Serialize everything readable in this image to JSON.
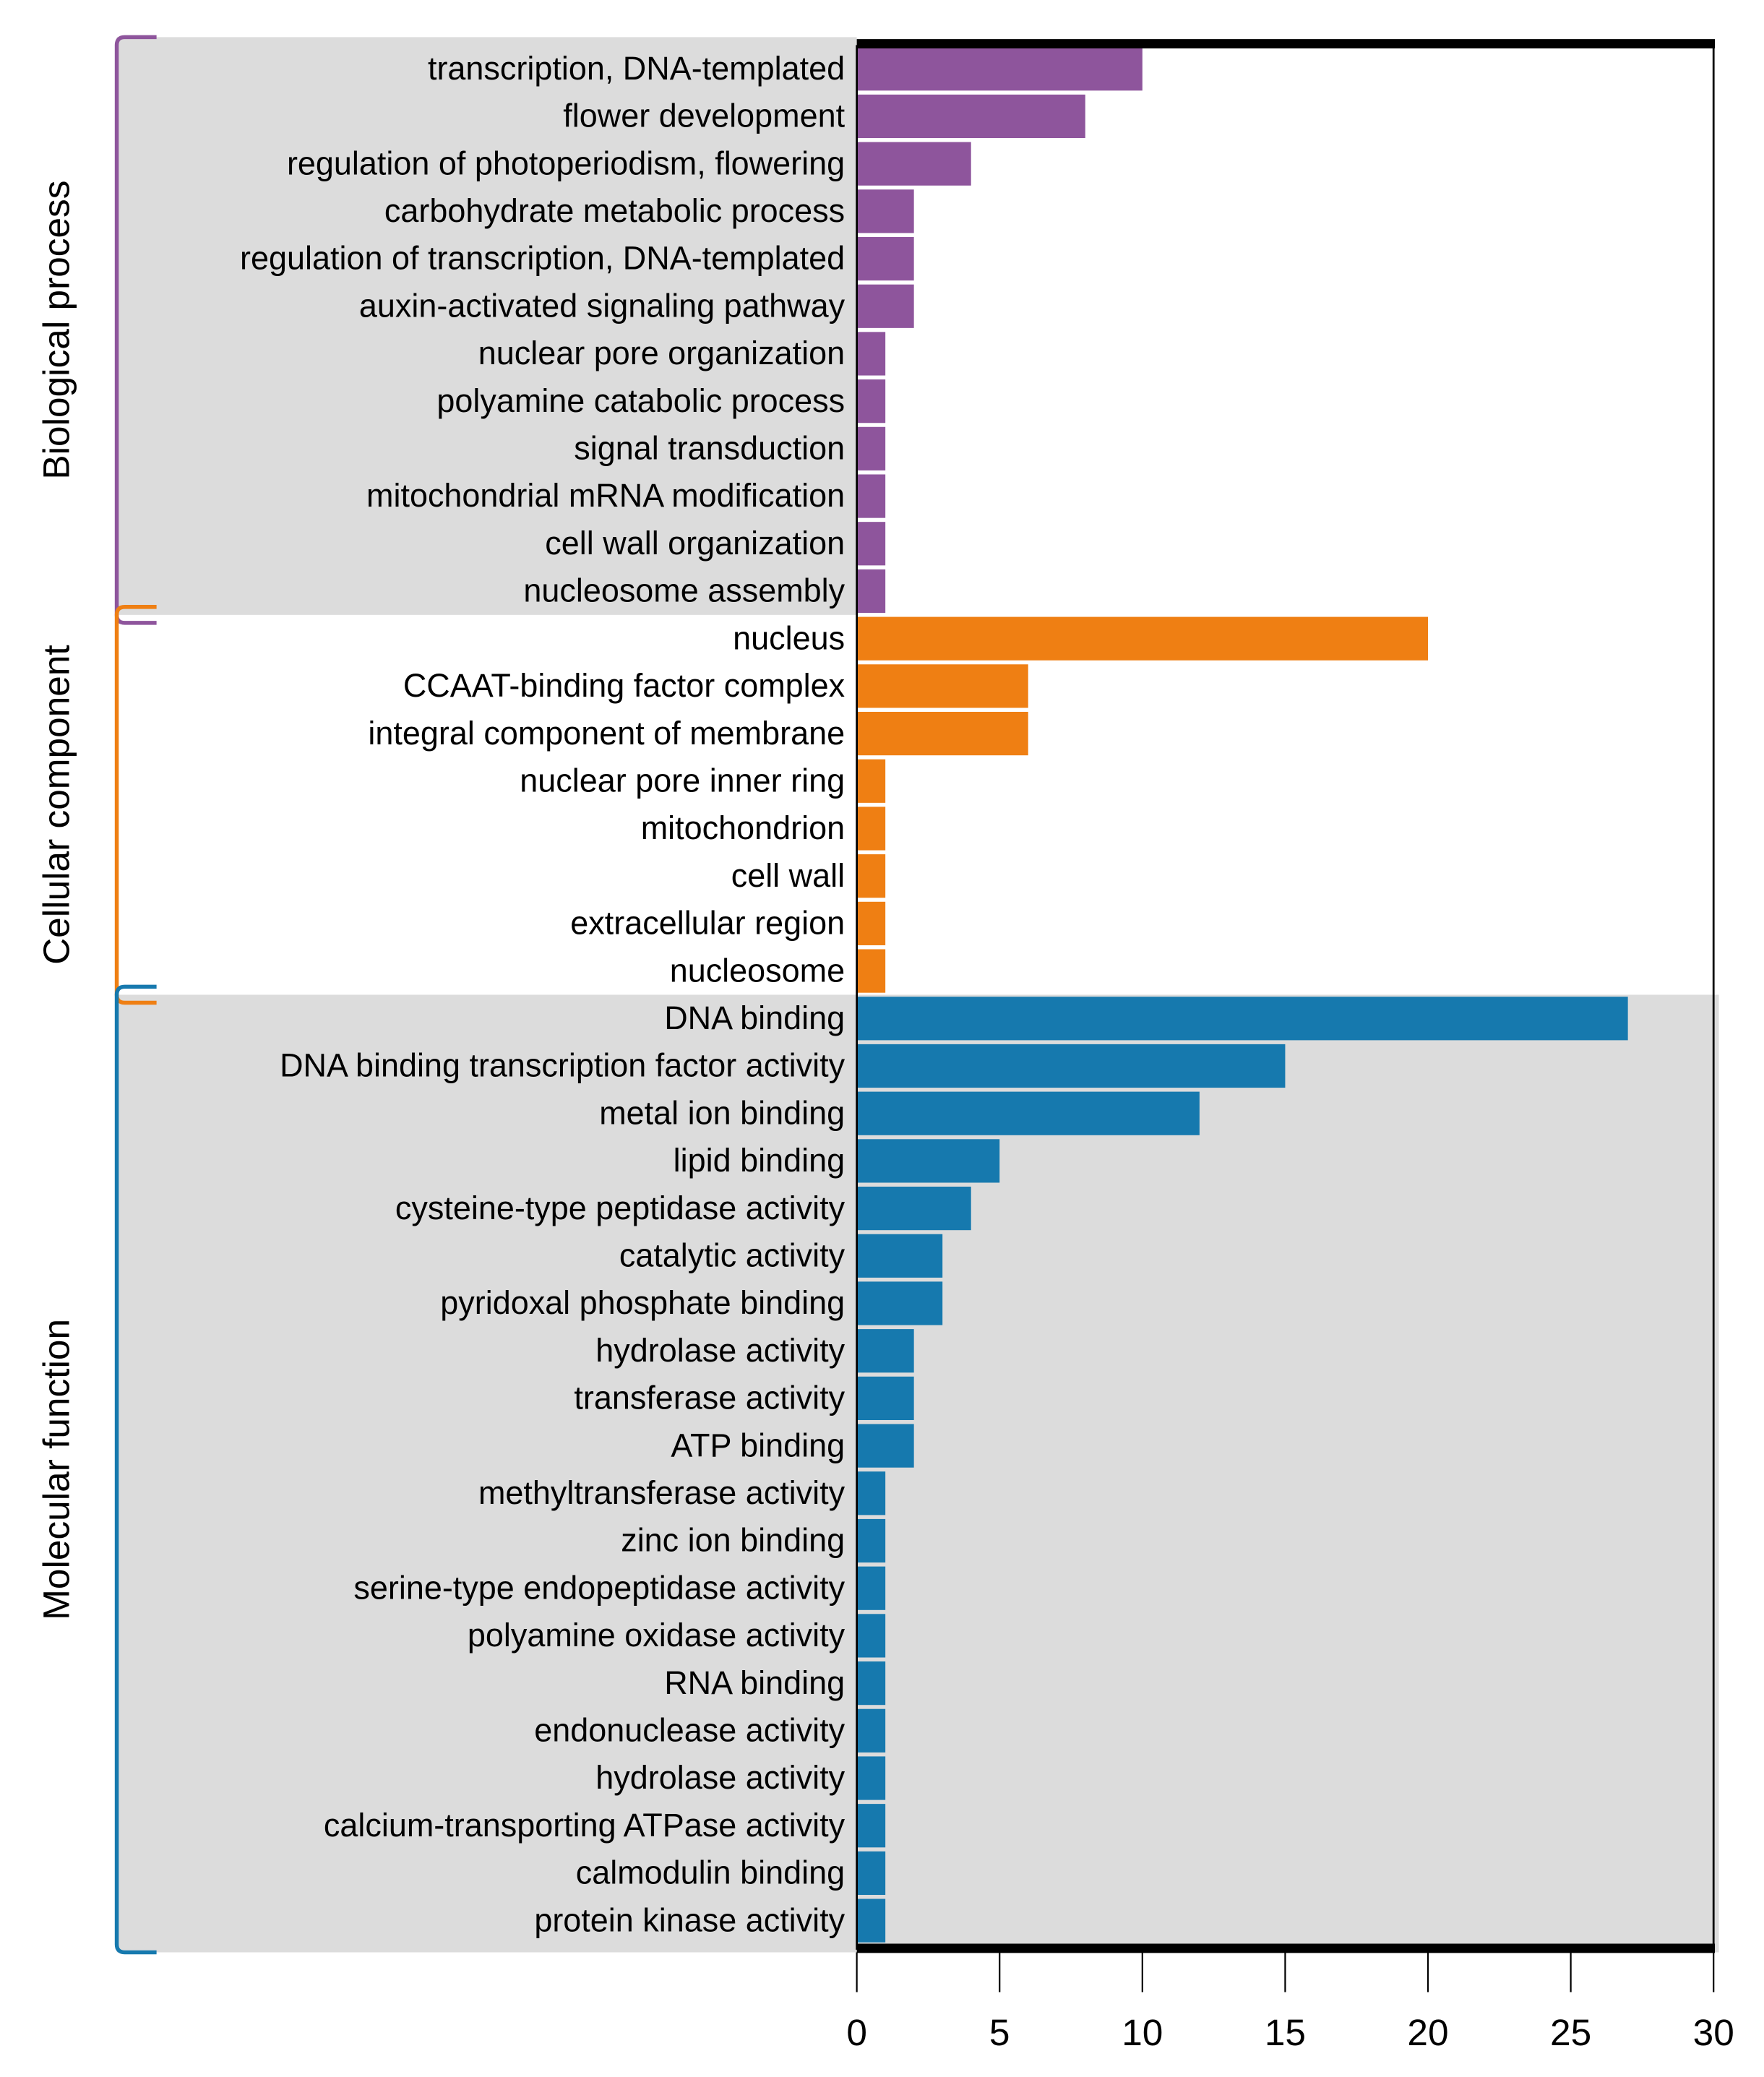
{
  "chart_data": {
    "type": "bar",
    "orientation": "horizontal",
    "xlim": [
      0,
      30
    ],
    "xticks": [
      0,
      5,
      10,
      15,
      20,
      25,
      30
    ],
    "xlabel": "",
    "ylabel": "",
    "title": "",
    "groups": [
      {
        "name": "Biological process",
        "color": "#8e559c",
        "categories": [
          "transcription, DNA-templated",
          "flower development",
          "regulation of photoperiodism, flowering",
          "carbohydrate metabolic process",
          "regulation of transcription, DNA-templated",
          "auxin-activated signaling pathway",
          "nuclear pore organization",
          "polyamine catabolic process",
          "signal transduction",
          "mitochondrial mRNA modification",
          "cell wall organization",
          "nucleosome assembly"
        ],
        "values": [
          10,
          8,
          4,
          2,
          2,
          2,
          1,
          1,
          1,
          1,
          1,
          1
        ]
      },
      {
        "name": "Cellular component",
        "color": "#ef7f13",
        "categories": [
          "nucleus",
          "CCAAT-binding factor complex",
          "integral component of membrane",
          "nuclear pore inner ring",
          "mitochondrion",
          "cell wall",
          "extracellular region",
          "nucleosome"
        ],
        "values": [
          20,
          6,
          6,
          1,
          1,
          1,
          1,
          1
        ]
      },
      {
        "name": "Molecular function",
        "color": "#1679ae",
        "categories": [
          "DNA binding",
          "DNA binding transcription factor activity",
          "metal ion binding",
          "lipid binding",
          "cysteine-type peptidase activity",
          "catalytic activity",
          "pyridoxal phosphate binding",
          "hydrolase activity",
          "transferase activity",
          "ATP binding",
          "methyltransferase activity",
          "zinc ion binding",
          "serine-type endopeptidase activity",
          "polyamine oxidase activity",
          "RNA binding",
          "endonuclease activity",
          "hydrolase activity",
          "calcium-transporting ATPase activity",
          "calmodulin binding",
          "protein kinase activity"
        ],
        "values": [
          27,
          15,
          12,
          5,
          4,
          3,
          3,
          2,
          2,
          2,
          1,
          1,
          1,
          1,
          1,
          1,
          1,
          1,
          1,
          1
        ]
      }
    ]
  }
}
